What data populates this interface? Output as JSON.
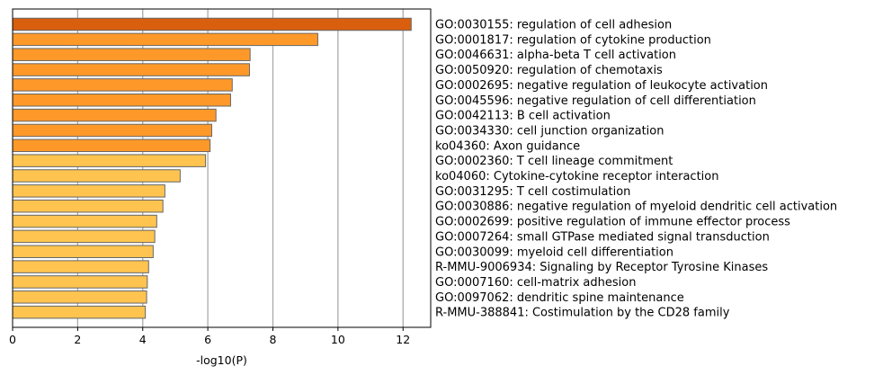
{
  "chart_data": {
    "type": "bar",
    "orientation": "horizontal",
    "xlabel": "-log10(P)",
    "ylabel": "",
    "xlim": [
      0,
      12.85
    ],
    "xticks": [
      0,
      2,
      4,
      6,
      8,
      10,
      12
    ],
    "grid": "vertical",
    "categories": [
      "GO:0030155: regulation of cell adhesion",
      "GO:0001817: regulation of cytokine production",
      "GO:0046631: alpha-beta T cell activation",
      "GO:0050920: regulation of chemotaxis",
      "GO:0002695: negative regulation of leukocyte activation",
      "GO:0045596: negative regulation of cell differentiation",
      "GO:0042113: B cell activation",
      "GO:0034330: cell junction organization",
      "ko04360: Axon guidance",
      "GO:0002360: T cell lineage commitment",
      "ko04060: Cytokine-cytokine receptor interaction",
      "GO:0031295: T cell costimulation",
      "GO:0030886: negative regulation of myeloid dendritic cell activation",
      "GO:0002699: positive regulation of immune effector process",
      "GO:0007264: small GTPase mediated signal transduction",
      "GO:0030099: myeloid cell differentiation",
      "R-MMU-9006934: Signaling by Receptor Tyrosine Kinases",
      "GO:0007160: cell-matrix adhesion",
      "GO:0097062: dendritic spine maintenance",
      "R-MMU-388841: Costimulation by the CD28 family"
    ],
    "values": [
      12.25,
      9.38,
      7.3,
      7.28,
      6.75,
      6.7,
      6.25,
      6.12,
      6.07,
      5.93,
      5.15,
      4.68,
      4.62,
      4.43,
      4.37,
      4.32,
      4.18,
      4.14,
      4.12,
      4.08
    ],
    "colors": {
      "top": "#D95F0E",
      "high": "#FE9929",
      "mid": "#FEC44F",
      "edge": "#666666",
      "grid": "#aaaaaa"
    },
    "bar_color_levels": [
      "top",
      "high",
      "high",
      "high",
      "high",
      "high",
      "high",
      "high",
      "high",
      "mid",
      "mid",
      "mid",
      "mid",
      "mid",
      "mid",
      "mid",
      "mid",
      "mid",
      "mid",
      "mid"
    ]
  }
}
